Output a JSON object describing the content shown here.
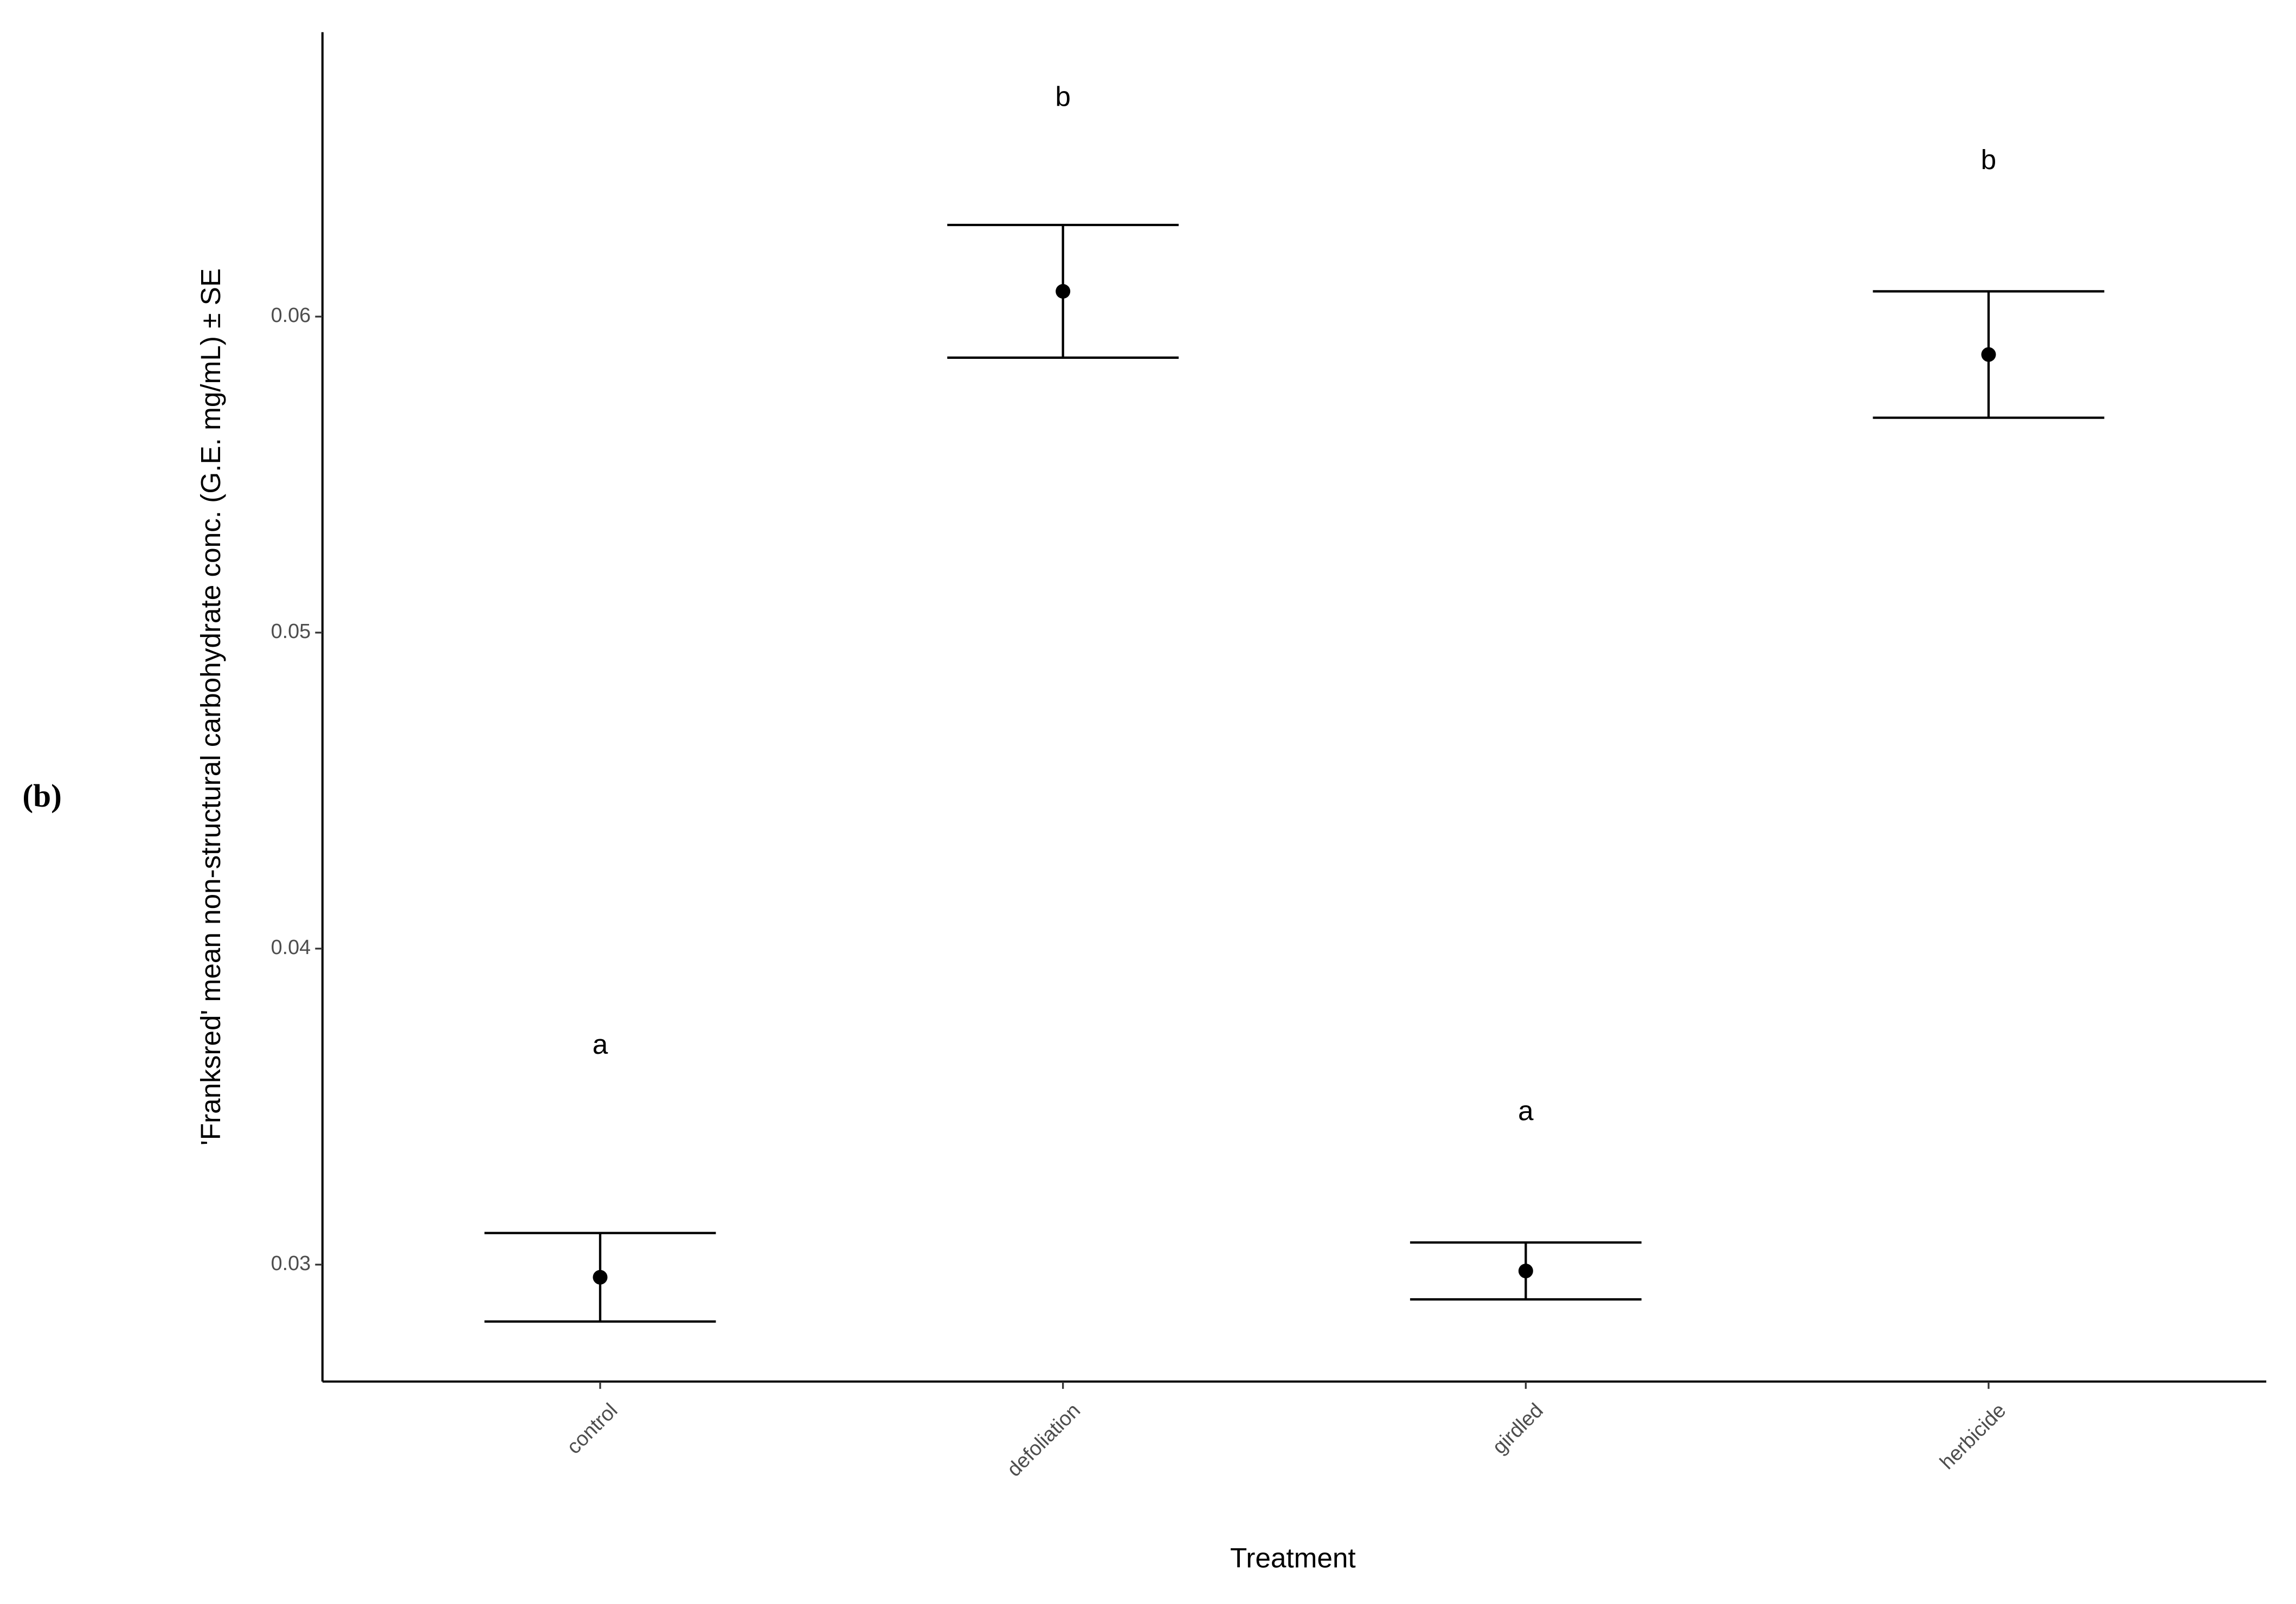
{
  "chart_data": {
    "type": "point",
    "panel_label": "(b)",
    "y_label": "'Franksred' mean non-structural carbohydrate conc. (G.E. mg/mL) ± SE",
    "x_label": "Treatment",
    "categories": [
      "control",
      "defoliation",
      "girdled",
      "herbicide"
    ],
    "values": [
      0.0296,
      0.0608,
      0.0298,
      0.0588
    ],
    "errors": [
      0.0014,
      0.0021,
      0.0009,
      0.002
    ],
    "color": "#000000",
    "annotations": [
      {
        "text": "a",
        "y": 0.0369
      },
      {
        "text": "b",
        "y": 0.0669
      },
      {
        "text": "a",
        "y": 0.0348
      },
      {
        "text": "b",
        "y": 0.0649
      }
    ],
    "ylim": [
      0.0263,
      0.069
    ],
    "yticks": [
      0.03,
      0.04,
      0.05,
      0.06
    ],
    "grid": false
  }
}
